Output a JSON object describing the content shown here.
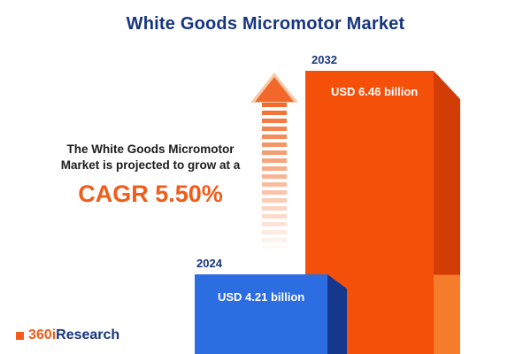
{
  "title": "White Goods Micromotor Market",
  "description": {
    "line1": "The White Goods Micromotor",
    "line2": "Market is projected to grow at a",
    "cagr": "CAGR 5.50%"
  },
  "chart_data": {
    "type": "bar",
    "title": "White Goods Micromotor Market",
    "categories": [
      "2024",
      "2032"
    ],
    "values": [
      4.21,
      6.46
    ],
    "value_labels": [
      "USD 4.21 billion",
      "USD 6.46 billion"
    ],
    "unit": "USD billion",
    "cagr_percent": 5.5,
    "xlabel": "",
    "ylabel": "",
    "legend": "none",
    "grid": false
  },
  "logo": {
    "prefix": "360i",
    "suffix": "Research"
  },
  "colors": {
    "navy": "#17357e",
    "bar_2024_front": "#2d6de2",
    "bar_2024_side": "#16388c",
    "bar_2032_front": "#f4500a",
    "bar_2032_side_dark": "#d23c05",
    "bar_2032_side_light": "#f57d2b",
    "accent_orange": "#f25c19",
    "background": "#ffffff"
  }
}
